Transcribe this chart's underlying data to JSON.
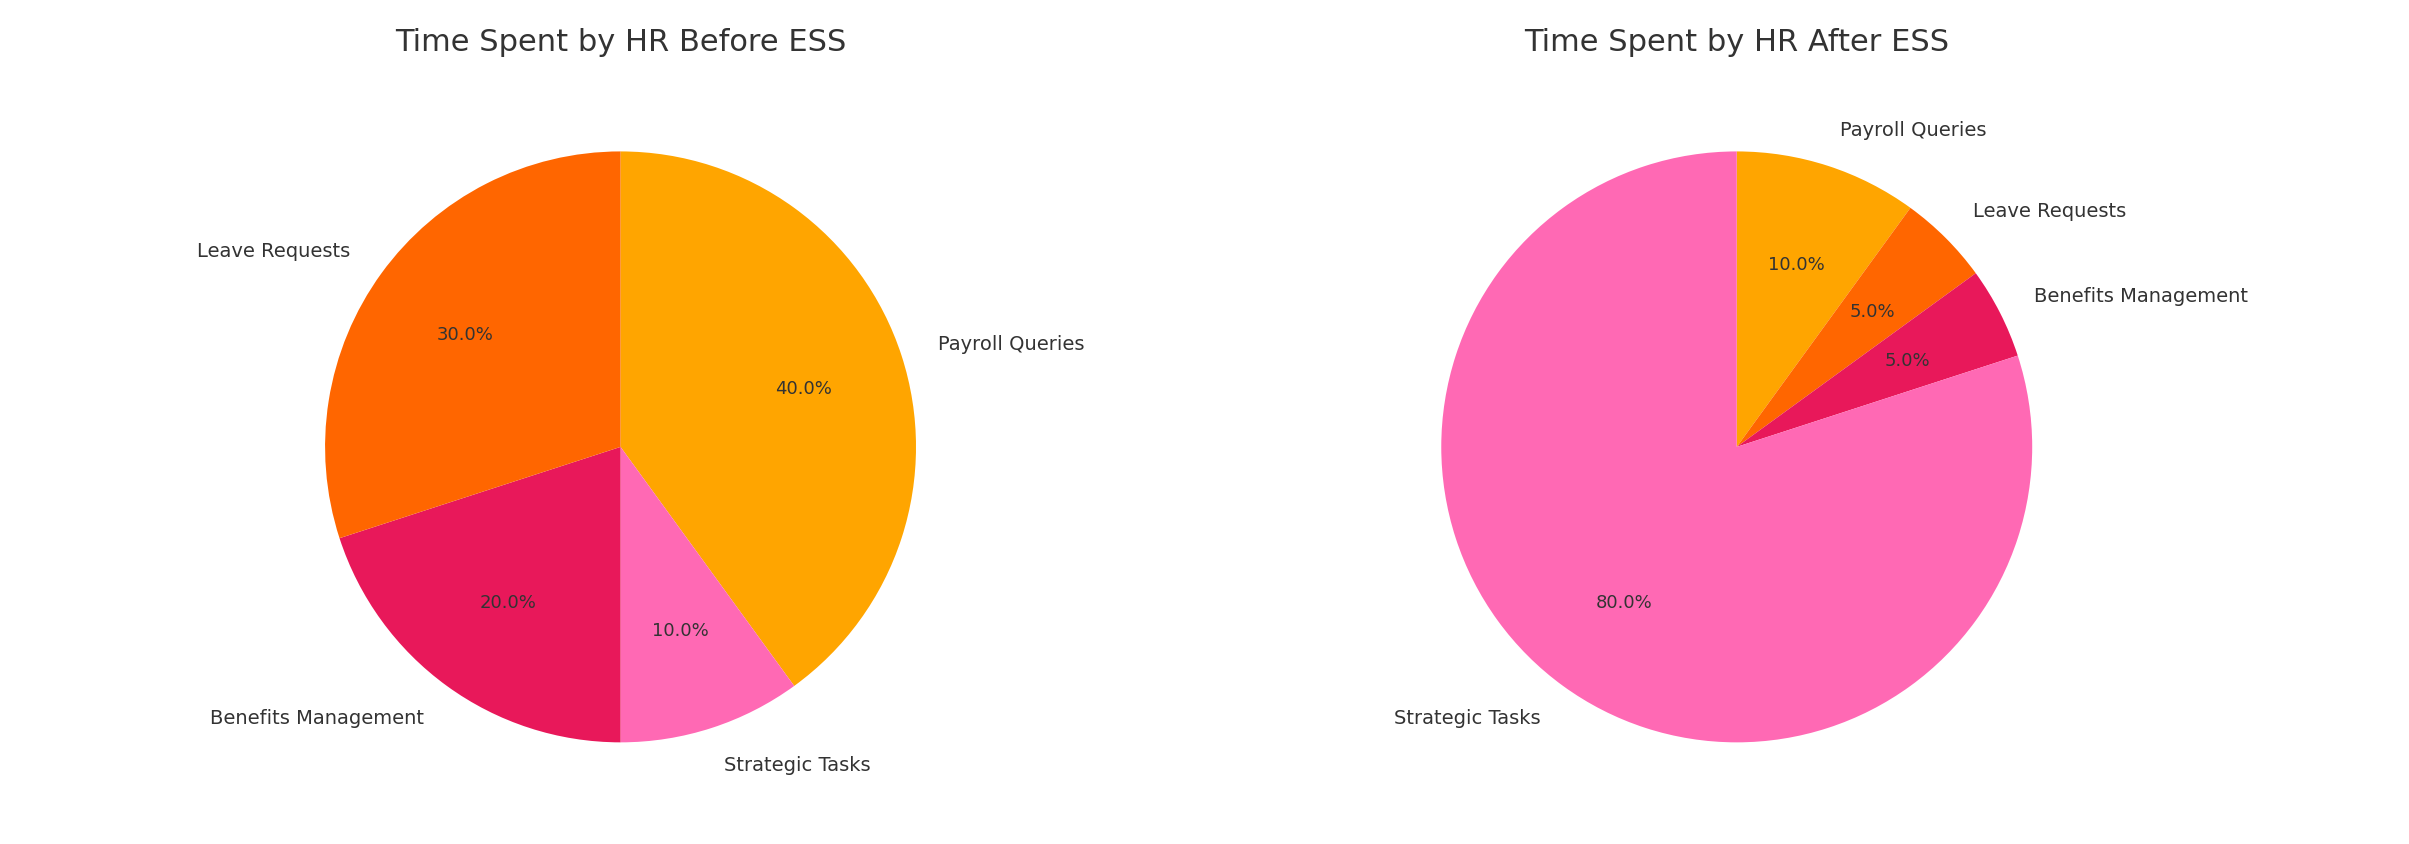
{
  "before": {
    "title": "Time Spent by HR Before ESS",
    "labels": [
      "Payroll Queries",
      "Strategic Tasks",
      "Benefits Management",
      "Leave Requests"
    ],
    "values": [
      40,
      10,
      20,
      30
    ],
    "colors": [
      "#FFA500",
      "#FF69B4",
      "#E8185A",
      "#FF6600"
    ],
    "startangle": 90,
    "counterclock": false
  },
  "after": {
    "title": "Time Spent by HR After ESS",
    "labels": [
      "Payroll Queries",
      "Leave Requests",
      "Benefits Management",
      "Strategic Tasks"
    ],
    "values": [
      10,
      5,
      5,
      80
    ],
    "colors": [
      "#FFA500",
      "#FF6600",
      "#E8185A",
      "#FF69B4"
    ],
    "startangle": 90,
    "counterclock": false
  },
  "fig_width": 24.09,
  "fig_height": 8.45,
  "title_fontsize": 22,
  "label_fontsize": 14,
  "pct_fontsize": 13,
  "background_color": "#FFFFFF",
  "text_color": "#333333"
}
